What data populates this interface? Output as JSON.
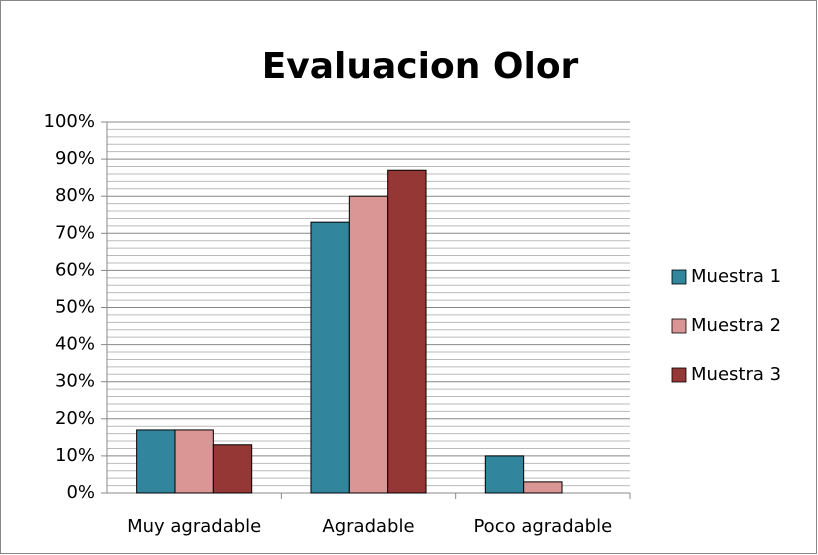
{
  "chart_data": {
    "type": "bar",
    "title": "Evaluacion Olor",
    "categories": [
      "Muy agradable",
      "Agradable",
      "Poco agradable"
    ],
    "series": [
      {
        "name": "Muestra 1",
        "color": "#31859c",
        "values": [
          17,
          73,
          10
        ]
      },
      {
        "name": "Muestra 2",
        "color": "#d99694",
        "values": [
          17,
          80,
          3
        ]
      },
      {
        "name": "Muestra 3",
        "color": "#953735",
        "values": [
          13,
          87,
          0
        ]
      }
    ],
    "ylim": [
      0,
      100
    ],
    "yticks": [
      {
        "value": 0,
        "label": "0%"
      },
      {
        "value": 10,
        "label": "10%"
      },
      {
        "value": 20,
        "label": "20%"
      },
      {
        "value": 30,
        "label": "30%"
      },
      {
        "value": 40,
        "label": "40%"
      },
      {
        "value": 50,
        "label": "50%"
      },
      {
        "value": 60,
        "label": "60%"
      },
      {
        "value": 70,
        "label": "70%"
      },
      {
        "value": 80,
        "label": "80%"
      },
      {
        "value": 90,
        "label": "90%"
      },
      {
        "value": 100,
        "label": "100%"
      }
    ],
    "grid": true,
    "minor_grid_divisions": 5,
    "legend": "right"
  }
}
